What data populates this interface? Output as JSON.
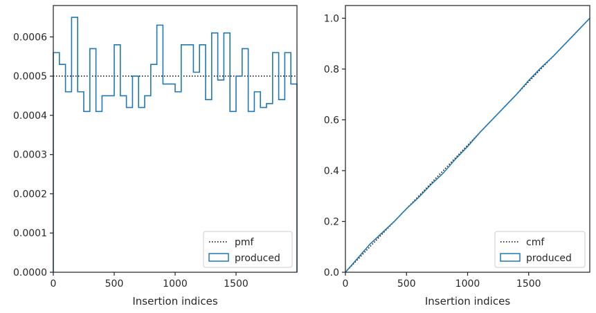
{
  "chart_data": [
    {
      "type": "line",
      "xlabel": "Insertion indices",
      "ylabel": "",
      "xlim": [
        0,
        2000
      ],
      "ylim": [
        0,
        0.00068
      ],
      "xticks": [
        0,
        500,
        1000,
        1500
      ],
      "xtick_labels": [
        "0",
        "500",
        "1000",
        "1500"
      ],
      "yticks": [
        0,
        0.0001,
        0.0002,
        0.0003,
        0.0004,
        0.0005,
        0.0006
      ],
      "ytick_labels": [
        "0.0000",
        "0.0001",
        "0.0002",
        "0.0003",
        "0.0004",
        "0.0005",
        "0.0006"
      ],
      "legend_position": "bottom-right",
      "series": [
        {
          "name": "pmf",
          "style": "dotted",
          "color": "#000000",
          "x": [
            0,
            2000
          ],
          "y": [
            0.0005,
            0.0005
          ]
        },
        {
          "name": "produced",
          "style": "step",
          "color": "#1f77b4",
          "bin_width": 50,
          "bin_edges_start": 0,
          "values": [
            0.00056,
            0.00053,
            0.00046,
            0.00065,
            0.00046,
            0.00041,
            0.00057,
            0.00041,
            0.00045,
            0.00045,
            0.00058,
            0.00045,
            0.00042,
            0.0005,
            0.00042,
            0.00045,
            0.00053,
            0.00063,
            0.00048,
            0.00048,
            0.00046,
            0.00058,
            0.00058,
            0.00051,
            0.00058,
            0.00044,
            0.00061,
            0.00049,
            0.00061,
            0.00041,
            0.0005,
            0.00057,
            0.00041,
            0.00046,
            0.00042,
            0.00043,
            0.00056,
            0.00044,
            0.00056,
            0.00048
          ]
        }
      ]
    },
    {
      "type": "line",
      "xlabel": "Insertion indices",
      "ylabel": "",
      "xlim": [
        0,
        2000
      ],
      "ylim": [
        0,
        1.05
      ],
      "xticks": [
        0,
        500,
        1000,
        1500
      ],
      "xtick_labels": [
        "0",
        "500",
        "1000",
        "1500"
      ],
      "yticks": [
        0,
        0.2,
        0.4,
        0.6,
        0.8,
        1.0
      ],
      "ytick_labels": [
        "0.0",
        "0.2",
        "0.4",
        "0.6",
        "0.8",
        "1.0"
      ],
      "legend_position": "bottom-right",
      "series": [
        {
          "name": "cmf",
          "style": "dotted",
          "color": "#000000",
          "x": [
            0,
            2000
          ],
          "y": [
            0,
            1.0
          ]
        },
        {
          "name": "produced",
          "style": "step",
          "color": "#1f77b4",
          "x": [
            0,
            100,
            200,
            300,
            400,
            500,
            600,
            700,
            800,
            900,
            1000,
            1100,
            1200,
            1300,
            1400,
            1500,
            1600,
            1700,
            1800,
            1900,
            2000
          ],
          "y": [
            0,
            0.055,
            0.11,
            0.155,
            0.2,
            0.25,
            0.295,
            0.345,
            0.39,
            0.445,
            0.495,
            0.55,
            0.6,
            0.65,
            0.7,
            0.755,
            0.805,
            0.85,
            0.9,
            0.95,
            1.0
          ]
        }
      ]
    }
  ]
}
